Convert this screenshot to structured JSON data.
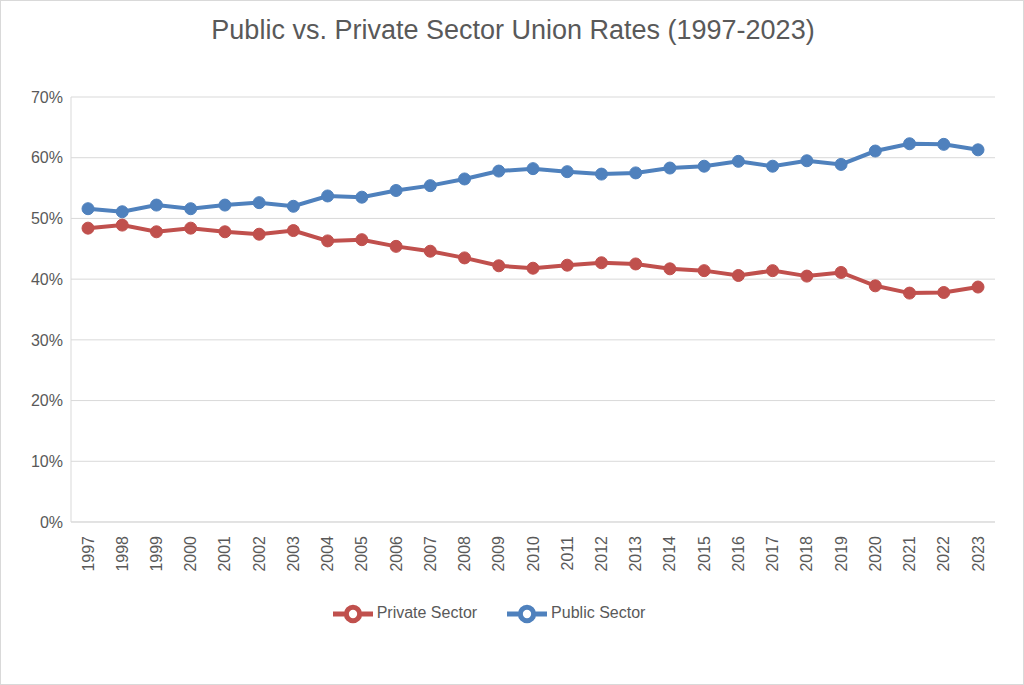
{
  "chart_data": {
    "type": "line",
    "title": "Public vs. Private Sector Union Rates (1997-2023)",
    "categories": [
      "1997",
      "1998",
      "1999",
      "2000",
      "2001",
      "2002",
      "2003",
      "2004",
      "2005",
      "2006",
      "2007",
      "2008",
      "2009",
      "2010",
      "2011",
      "2012",
      "2013",
      "2014",
      "2015",
      "2016",
      "2017",
      "2018",
      "2019",
      "2020",
      "2021",
      "2022",
      "2023"
    ],
    "series": [
      {
        "name": "Public Sector",
        "color": "#4f81bd",
        "marker": "circle",
        "values": [
          51.6,
          51.1,
          52.2,
          51.6,
          52.2,
          52.6,
          52.0,
          53.7,
          53.5,
          54.6,
          55.4,
          56.5,
          57.8,
          58.2,
          57.7,
          57.3,
          57.5,
          58.3,
          58.6,
          59.4,
          58.6,
          59.5,
          58.9,
          61.1,
          62.3,
          62.2,
          61.3
        ]
      },
      {
        "name": "Private Sector",
        "color": "#c0504d",
        "marker": "circle",
        "values": [
          48.4,
          48.9,
          47.8,
          48.4,
          47.8,
          47.4,
          48.0,
          46.3,
          46.5,
          45.4,
          44.6,
          43.5,
          42.2,
          41.8,
          42.3,
          42.7,
          42.5,
          41.7,
          41.4,
          40.6,
          41.4,
          40.5,
          41.1,
          38.9,
          37.7,
          37.8,
          38.7
        ]
      }
    ],
    "ylim": [
      0,
      70
    ],
    "yticks": [
      {
        "value": 0,
        "label": "0%"
      },
      {
        "value": 10,
        "label": "10%"
      },
      {
        "value": 20,
        "label": "20%"
      },
      {
        "value": 30,
        "label": "30%"
      },
      {
        "value": 40,
        "label": "40%"
      },
      {
        "value": 50,
        "label": "50%"
      },
      {
        "value": 60,
        "label": "60%"
      },
      {
        "value": 70,
        "label": "70%"
      }
    ],
    "grid": true,
    "legend": "bottom"
  }
}
